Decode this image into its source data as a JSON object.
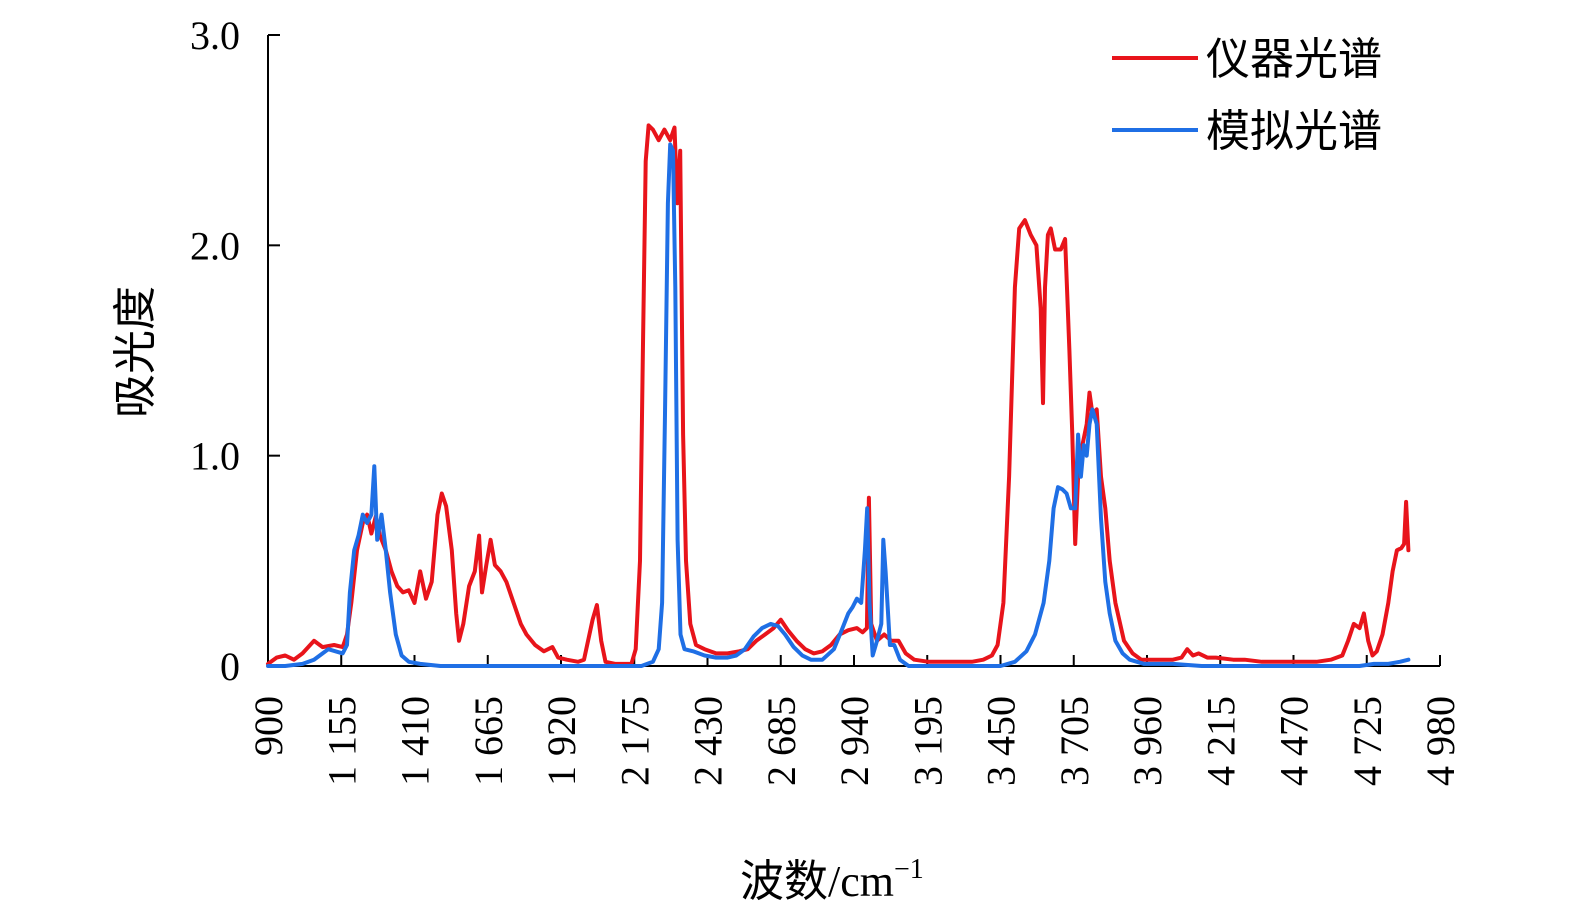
{
  "chart_data": {
    "type": "line",
    "xlabel": "波数/cm",
    "xlabel_sup": "−1",
    "ylabel": "吸光度",
    "xlim": [
      900,
      4980
    ],
    "ylim": [
      0,
      3.0
    ],
    "x_ticks": [
      900,
      1155,
      1410,
      1665,
      1920,
      2175,
      2430,
      2685,
      2940,
      3195,
      3450,
      3705,
      3960,
      4215,
      4470,
      4725,
      4980
    ],
    "x_tick_labels": [
      "900",
      "1 155",
      "1 410",
      "1 665",
      "1 920",
      "2 175",
      "2 430",
      "2 685",
      "2 940",
      "3 195",
      "3 450",
      "3 705",
      "3 960",
      "4 215",
      "4 470",
      "4 725",
      "4 980"
    ],
    "y_ticks": [
      0,
      1.0,
      2.0,
      3.0
    ],
    "y_tick_labels": [
      "0",
      "1.0",
      "2.0",
      "3.0"
    ],
    "legend_position": "top-right",
    "grid": false,
    "series": [
      {
        "name": "仪器光谱",
        "color": "#e8141b",
        "points": [
          [
            900,
            0.01
          ],
          [
            930,
            0.04
          ],
          [
            960,
            0.05
          ],
          [
            990,
            0.03
          ],
          [
            1020,
            0.06
          ],
          [
            1060,
            0.12
          ],
          [
            1090,
            0.09
          ],
          [
            1130,
            0.1
          ],
          [
            1160,
            0.09
          ],
          [
            1175,
            0.15
          ],
          [
            1190,
            0.3
          ],
          [
            1210,
            0.55
          ],
          [
            1230,
            0.68
          ],
          [
            1245,
            0.72
          ],
          [
            1260,
            0.63
          ],
          [
            1275,
            0.71
          ],
          [
            1290,
            0.62
          ],
          [
            1310,
            0.55
          ],
          [
            1330,
            0.45
          ],
          [
            1350,
            0.38
          ],
          [
            1370,
            0.35
          ],
          [
            1390,
            0.36
          ],
          [
            1410,
            0.3
          ],
          [
            1430,
            0.45
          ],
          [
            1450,
            0.32
          ],
          [
            1470,
            0.4
          ],
          [
            1490,
            0.72
          ],
          [
            1505,
            0.82
          ],
          [
            1520,
            0.76
          ],
          [
            1540,
            0.55
          ],
          [
            1555,
            0.25
          ],
          [
            1565,
            0.12
          ],
          [
            1580,
            0.2
          ],
          [
            1600,
            0.38
          ],
          [
            1620,
            0.45
          ],
          [
            1635,
            0.62
          ],
          [
            1645,
            0.35
          ],
          [
            1660,
            0.48
          ],
          [
            1675,
            0.6
          ],
          [
            1690,
            0.48
          ],
          [
            1710,
            0.45
          ],
          [
            1730,
            0.4
          ],
          [
            1755,
            0.3
          ],
          [
            1780,
            0.2
          ],
          [
            1800,
            0.15
          ],
          [
            1830,
            0.1
          ],
          [
            1860,
            0.07
          ],
          [
            1890,
            0.09
          ],
          [
            1910,
            0.04
          ],
          [
            1940,
            0.03
          ],
          [
            1980,
            0.02
          ],
          [
            2000,
            0.03
          ],
          [
            2030,
            0.22
          ],
          [
            2045,
            0.29
          ],
          [
            2060,
            0.12
          ],
          [
            2075,
            0.02
          ],
          [
            2110,
            0.01
          ],
          [
            2140,
            0.01
          ],
          [
            2165,
            0.01
          ],
          [
            2180,
            0.08
          ],
          [
            2195,
            0.5
          ],
          [
            2205,
            1.5
          ],
          [
            2215,
            2.4
          ],
          [
            2225,
            2.57
          ],
          [
            2240,
            2.55
          ],
          [
            2260,
            2.5
          ],
          [
            2280,
            2.55
          ],
          [
            2300,
            2.5
          ],
          [
            2315,
            2.56
          ],
          [
            2325,
            2.2
          ],
          [
            2335,
            2.45
          ],
          [
            2345,
            1.1
          ],
          [
            2355,
            0.5
          ],
          [
            2370,
            0.2
          ],
          [
            2390,
            0.1
          ],
          [
            2420,
            0.08
          ],
          [
            2460,
            0.06
          ],
          [
            2500,
            0.06
          ],
          [
            2540,
            0.07
          ],
          [
            2570,
            0.08
          ],
          [
            2600,
            0.12
          ],
          [
            2630,
            0.15
          ],
          [
            2660,
            0.18
          ],
          [
            2685,
            0.22
          ],
          [
            2710,
            0.17
          ],
          [
            2740,
            0.12
          ],
          [
            2770,
            0.08
          ],
          [
            2800,
            0.06
          ],
          [
            2830,
            0.07
          ],
          [
            2860,
            0.1
          ],
          [
            2890,
            0.15
          ],
          [
            2920,
            0.17
          ],
          [
            2950,
            0.18
          ],
          [
            2970,
            0.16
          ],
          [
            2985,
            0.18
          ],
          [
            2992,
            0.8
          ],
          [
            3000,
            0.2
          ],
          [
            3020,
            0.12
          ],
          [
            3045,
            0.15
          ],
          [
            3070,
            0.12
          ],
          [
            3095,
            0.12
          ],
          [
            3120,
            0.06
          ],
          [
            3150,
            0.03
          ],
          [
            3200,
            0.02
          ],
          [
            3250,
            0.02
          ],
          [
            3300,
            0.02
          ],
          [
            3350,
            0.02
          ],
          [
            3390,
            0.03
          ],
          [
            3420,
            0.05
          ],
          [
            3440,
            0.1
          ],
          [
            3460,
            0.3
          ],
          [
            3480,
            0.9
          ],
          [
            3500,
            1.8
          ],
          [
            3515,
            2.08
          ],
          [
            3535,
            2.12
          ],
          [
            3555,
            2.05
          ],
          [
            3575,
            2.0
          ],
          [
            3590,
            1.7
          ],
          [
            3598,
            1.25
          ],
          [
            3605,
            1.8
          ],
          [
            3615,
            2.05
          ],
          [
            3625,
            2.08
          ],
          [
            3640,
            1.98
          ],
          [
            3660,
            1.98
          ],
          [
            3675,
            2.03
          ],
          [
            3690,
            1.5
          ],
          [
            3700,
            1.1
          ],
          [
            3710,
            0.58
          ],
          [
            3720,
            0.9
          ],
          [
            3735,
            1.05
          ],
          [
            3750,
            1.15
          ],
          [
            3760,
            1.3
          ],
          [
            3770,
            1.2
          ],
          [
            3785,
            1.22
          ],
          [
            3800,
            0.9
          ],
          [
            3815,
            0.75
          ],
          [
            3830,
            0.5
          ],
          [
            3850,
            0.3
          ],
          [
            3880,
            0.12
          ],
          [
            3910,
            0.06
          ],
          [
            3940,
            0.03
          ],
          [
            4000,
            0.03
          ],
          [
            4050,
            0.03
          ],
          [
            4080,
            0.04
          ],
          [
            4100,
            0.08
          ],
          [
            4120,
            0.05
          ],
          [
            4140,
            0.06
          ],
          [
            4170,
            0.04
          ],
          [
            4200,
            0.04
          ],
          [
            4260,
            0.03
          ],
          [
            4300,
            0.03
          ],
          [
            4360,
            0.02
          ],
          [
            4420,
            0.02
          ],
          [
            4480,
            0.02
          ],
          [
            4550,
            0.02
          ],
          [
            4600,
            0.03
          ],
          [
            4640,
            0.05
          ],
          [
            4660,
            0.12
          ],
          [
            4680,
            0.2
          ],
          [
            4700,
            0.18
          ],
          [
            4715,
            0.25
          ],
          [
            4730,
            0.12
          ],
          [
            4745,
            0.05
          ],
          [
            4760,
            0.07
          ],
          [
            4780,
            0.15
          ],
          [
            4800,
            0.3
          ],
          [
            4815,
            0.45
          ],
          [
            4830,
            0.55
          ],
          [
            4845,
            0.56
          ],
          [
            4855,
            0.58
          ],
          [
            4862,
            0.78
          ],
          [
            4870,
            0.55
          ]
        ]
      },
      {
        "name": "模拟光谱",
        "color": "#1f6fe5",
        "points": [
          [
            900,
            0.0
          ],
          [
            960,
            0.0
          ],
          [
            1020,
            0.01
          ],
          [
            1060,
            0.03
          ],
          [
            1090,
            0.06
          ],
          [
            1110,
            0.08
          ],
          [
            1135,
            0.07
          ],
          [
            1160,
            0.06
          ],
          [
            1175,
            0.1
          ],
          [
            1185,
            0.35
          ],
          [
            1200,
            0.55
          ],
          [
            1215,
            0.62
          ],
          [
            1230,
            0.72
          ],
          [
            1245,
            0.68
          ],
          [
            1260,
            0.72
          ],
          [
            1270,
            0.95
          ],
          [
            1280,
            0.6
          ],
          [
            1295,
            0.72
          ],
          [
            1310,
            0.55
          ],
          [
            1325,
            0.35
          ],
          [
            1345,
            0.15
          ],
          [
            1365,
            0.05
          ],
          [
            1390,
            0.02
          ],
          [
            1430,
            0.01
          ],
          [
            1500,
            0.0
          ],
          [
            1600,
            0.0
          ],
          [
            1800,
            0.0
          ],
          [
            2000,
            0.0
          ],
          [
            2100,
            0.0
          ],
          [
            2200,
            0.0
          ],
          [
            2240,
            0.02
          ],
          [
            2260,
            0.08
          ],
          [
            2272,
            0.3
          ],
          [
            2282,
            1.2
          ],
          [
            2292,
            2.2
          ],
          [
            2300,
            2.48
          ],
          [
            2310,
            2.45
          ],
          [
            2318,
            1.8
          ],
          [
            2326,
            0.6
          ],
          [
            2336,
            0.15
          ],
          [
            2350,
            0.08
          ],
          [
            2380,
            0.07
          ],
          [
            2420,
            0.05
          ],
          [
            2460,
            0.04
          ],
          [
            2500,
            0.04
          ],
          [
            2530,
            0.05
          ],
          [
            2560,
            0.08
          ],
          [
            2590,
            0.14
          ],
          [
            2620,
            0.18
          ],
          [
            2650,
            0.2
          ],
          [
            2675,
            0.19
          ],
          [
            2700,
            0.15
          ],
          [
            2730,
            0.09
          ],
          [
            2760,
            0.05
          ],
          [
            2790,
            0.03
          ],
          [
            2830,
            0.03
          ],
          [
            2870,
            0.08
          ],
          [
            2900,
            0.18
          ],
          [
            2920,
            0.25
          ],
          [
            2935,
            0.28
          ],
          [
            2950,
            0.32
          ],
          [
            2965,
            0.3
          ],
          [
            2978,
            0.55
          ],
          [
            2986,
            0.75
          ],
          [
            2994,
            0.3
          ],
          [
            3005,
            0.05
          ],
          [
            3020,
            0.12
          ],
          [
            3035,
            0.2
          ],
          [
            3042,
            0.6
          ],
          [
            3050,
            0.45
          ],
          [
            3065,
            0.1
          ],
          [
            3080,
            0.1
          ],
          [
            3100,
            0.03
          ],
          [
            3130,
            0.0
          ],
          [
            3200,
            0.0
          ],
          [
            3300,
            0.0
          ],
          [
            3400,
            0.0
          ],
          [
            3450,
            0.0
          ],
          [
            3500,
            0.02
          ],
          [
            3540,
            0.07
          ],
          [
            3570,
            0.15
          ],
          [
            3600,
            0.3
          ],
          [
            3620,
            0.5
          ],
          [
            3635,
            0.75
          ],
          [
            3650,
            0.85
          ],
          [
            3665,
            0.84
          ],
          [
            3680,
            0.82
          ],
          [
            3695,
            0.75
          ],
          [
            3710,
            0.75
          ],
          [
            3720,
            1.1
          ],
          [
            3730,
            0.9
          ],
          [
            3740,
            1.05
          ],
          [
            3750,
            1.0
          ],
          [
            3760,
            1.15
          ],
          [
            3770,
            1.22
          ],
          [
            3785,
            1.15
          ],
          [
            3800,
            0.7
          ],
          [
            3815,
            0.4
          ],
          [
            3830,
            0.25
          ],
          [
            3850,
            0.12
          ],
          [
            3875,
            0.06
          ],
          [
            3900,
            0.03
          ],
          [
            3950,
            0.01
          ],
          [
            4050,
            0.01
          ],
          [
            4150,
            0.0
          ],
          [
            4250,
            0.0
          ],
          [
            4350,
            0.0
          ],
          [
            4500,
            0.0
          ],
          [
            4600,
            0.0
          ],
          [
            4700,
            0.0
          ],
          [
            4750,
            0.01
          ],
          [
            4800,
            0.01
          ],
          [
            4840,
            0.02
          ],
          [
            4870,
            0.03
          ]
        ]
      }
    ]
  }
}
